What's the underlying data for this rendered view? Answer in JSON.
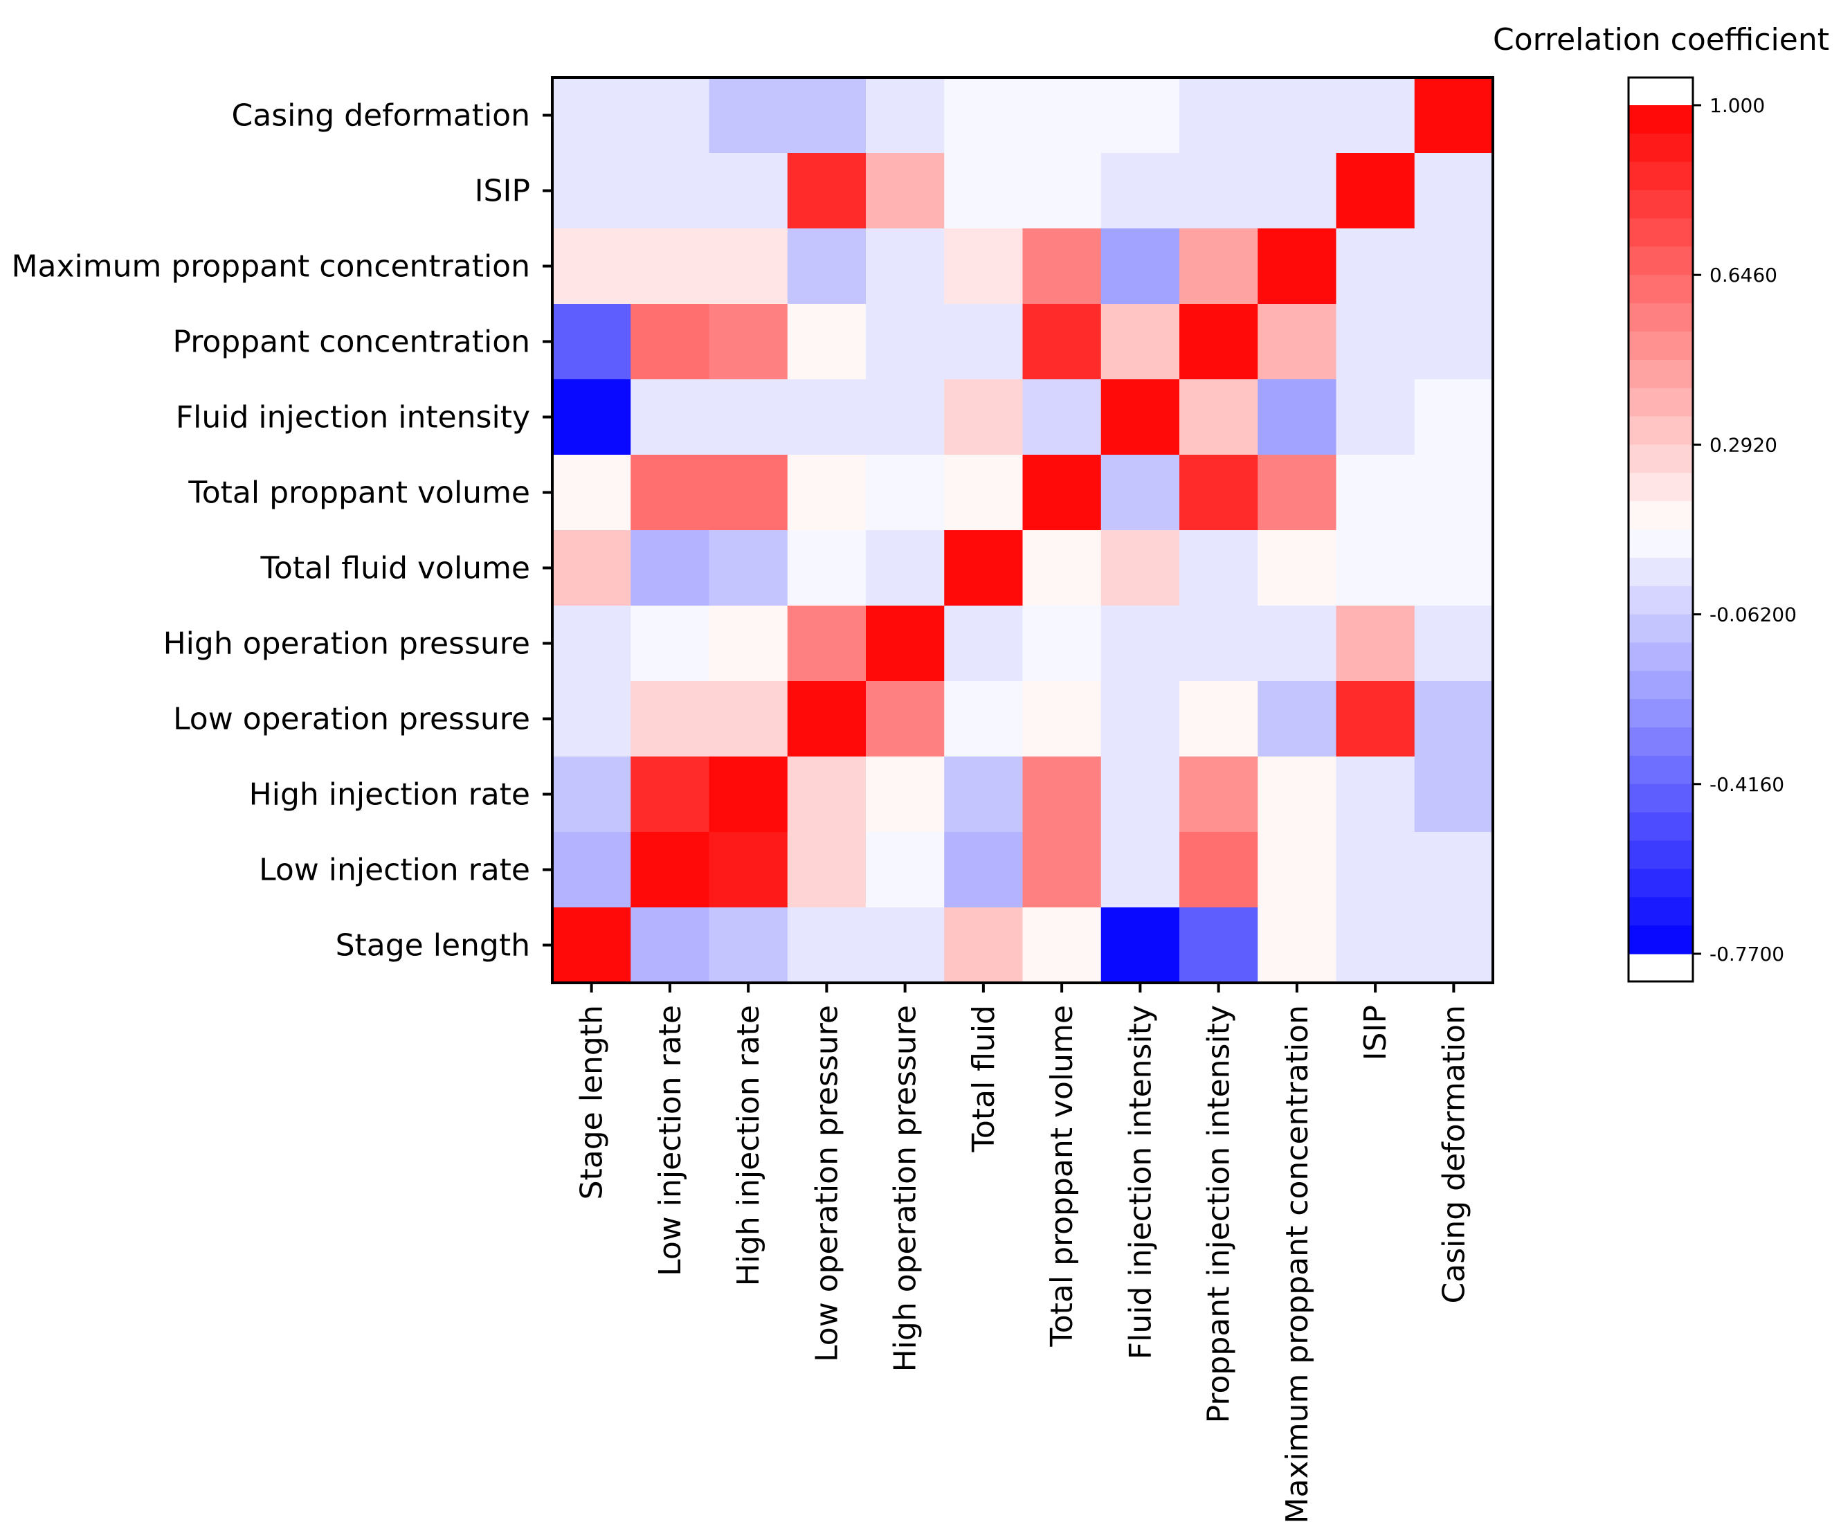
{
  "chart_data": {
    "type": "heatmap",
    "title": "",
    "xlabel": "",
    "ylabel": "",
    "x_labels": [
      "Stage length",
      "Low injection rate",
      "High injection rate",
      "Low operation pressure",
      "High operation pressure",
      "Total fluid",
      "Total proppant volume",
      "Fluid injection intensity",
      "Proppant injection intensity",
      "Maximum proppant concentration",
      "ISIP",
      "Casing deformation"
    ],
    "y_labels": [
      "Casing deformation",
      "ISIP",
      "Maximum proppant concentration",
      "Proppant concentration",
      "Fluid injection intensity",
      "Total proppant volume",
      "Total fluid volume",
      "High operation pressure",
      "Low operation pressure",
      "High injection rate",
      "Low injection rate",
      "Stage length"
    ],
    "values": [
      [
        0.05,
        0.0,
        -0.1,
        -0.1,
        0.0,
        0.1,
        0.1,
        0.1,
        0.05,
        0.0,
        0.0,
        1.0
      ],
      [
        0.0,
        0.0,
        0.05,
        0.85,
        0.4,
        0.1,
        0.1,
        0.05,
        0.05,
        0.0,
        1.0,
        0.0
      ],
      [
        0.18,
        0.18,
        0.18,
        -0.08,
        0.0,
        0.18,
        0.55,
        -0.2,
        0.45,
        1.0,
        0.0,
        0.0
      ],
      [
        -0.45,
        0.6,
        0.55,
        0.17,
        0.05,
        0.0,
        0.85,
        0.35,
        1.0,
        0.4,
        0.05,
        0.05
      ],
      [
        -0.77,
        0.05,
        0.0,
        0.0,
        0.0,
        0.25,
        -0.05,
        1.0,
        0.35,
        -0.2,
        0.05,
        0.1
      ],
      [
        0.17,
        0.6,
        0.6,
        0.15,
        0.1,
        0.17,
        1.0,
        -0.07,
        0.85,
        0.55,
        0.1,
        0.1
      ],
      [
        0.35,
        -0.13,
        -0.1,
        0.1,
        0.05,
        1.0,
        0.17,
        0.25,
        0.0,
        0.15,
        0.1,
        0.1
      ],
      [
        0.05,
        0.1,
        0.17,
        0.55,
        1.0,
        0.05,
        0.1,
        0.0,
        0.05,
        0.0,
        0.4,
        0.0
      ],
      [
        0.05,
        0.25,
        0.25,
        1.0,
        0.55,
        0.1,
        0.17,
        0.0,
        0.17,
        -0.07,
        0.85,
        -0.07
      ],
      [
        -0.07,
        0.85,
        1.0,
        0.25,
        0.17,
        -0.08,
        0.55,
        0.0,
        0.5,
        0.17,
        0.05,
        -0.1
      ],
      [
        -0.13,
        1.0,
        0.9,
        0.25,
        0.1,
        -0.18,
        0.55,
        0.05,
        0.6,
        0.15,
        0.0,
        0.0
      ],
      [
        1.0,
        -0.15,
        -0.08,
        0.05,
        0.05,
        0.35,
        0.17,
        -0.77,
        -0.45,
        0.17,
        0.0,
        0.05
      ]
    ],
    "colorbar": {
      "title": "Correlation coefficient",
      "ticks": [
        "1.000",
        "0.6460",
        "0.2920",
        "-0.06200",
        "-0.4160",
        "-0.7700"
      ],
      "range": [
        -0.77,
        1.0
      ],
      "levels": 30
    },
    "colors": {
      "negative": "#0000ff",
      "neutral": "#ffffff",
      "positive": "#ff0000"
    }
  }
}
